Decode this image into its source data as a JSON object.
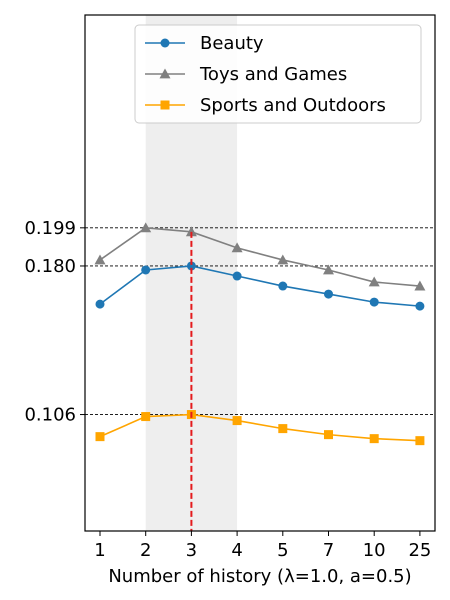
{
  "chart_data": {
    "type": "line",
    "xlabel": "Number of history (λ=1.0, a=0.5)",
    "categories": [
      "1",
      "2",
      "3",
      "4",
      "5",
      "7",
      "10",
      "25"
    ],
    "y_ticks": [
      "0.199",
      "0.180",
      "0.106"
    ],
    "y_tick_values": [
      0.199,
      0.18,
      0.106
    ],
    "ylim": [
      0.048,
      0.305
    ],
    "grid": false,
    "legend_position": "top-center",
    "highlight_band": {
      "from": "2",
      "to": "4",
      "color": "#eeeeee"
    },
    "highlight_line": {
      "at": "3",
      "color": "#e41a1c"
    },
    "reference_lines": [
      0.199,
      0.18,
      0.106
    ],
    "series": [
      {
        "name": "Beauty",
        "color": "#1f77b4",
        "marker": "circle",
        "values": [
          0.161,
          0.178,
          0.18,
          0.175,
          0.17,
          0.166,
          0.162,
          0.16
        ]
      },
      {
        "name": "Toys and Games",
        "color": "#808080",
        "marker": "triangle",
        "values": [
          0.183,
          0.199,
          0.197,
          0.189,
          0.183,
          0.178,
          0.172,
          0.17
        ]
      },
      {
        "name": "Sports and Outdoors",
        "color": "#ffa500",
        "marker": "square",
        "values": [
          0.095,
          0.105,
          0.106,
          0.103,
          0.099,
          0.096,
          0.094,
          0.093
        ]
      }
    ]
  }
}
